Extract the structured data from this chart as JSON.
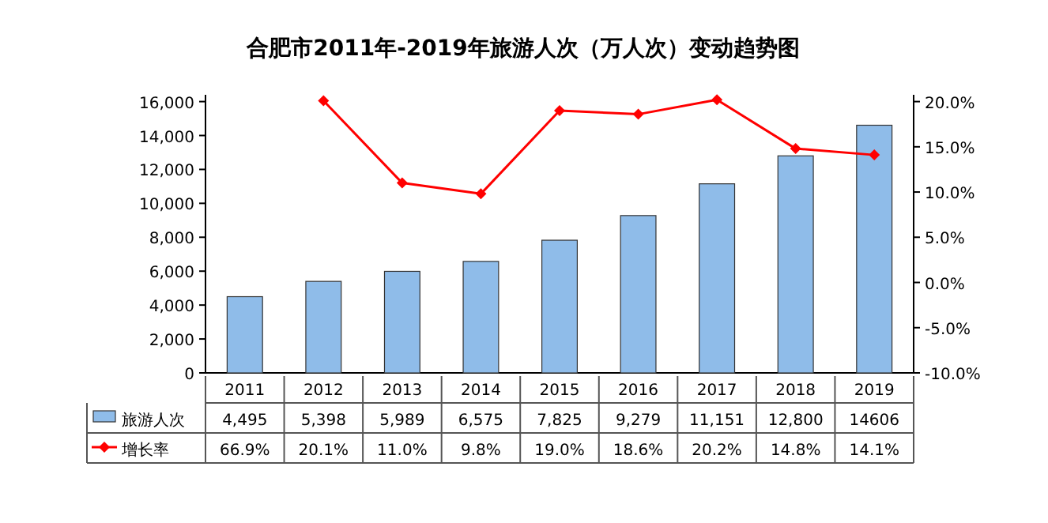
{
  "chart_data": {
    "type": "bar",
    "title": "合肥市2011年-2019年旅游人次（万人次）变动趋势图",
    "categories": [
      "2011",
      "2012",
      "2013",
      "2014",
      "2015",
      "2016",
      "2017",
      "2018",
      "2019"
    ],
    "series": [
      {
        "name": "旅游人次",
        "color": "#8fbce9",
        "values": [
          4495,
          5398,
          5989,
          6575,
          7825,
          9279,
          11151,
          12800,
          14606
        ],
        "value_labels": [
          "4,495",
          "5,398",
          "5,989",
          "6,575",
          "7,825",
          "9,279",
          "11,151",
          "12,800",
          "14606"
        ]
      },
      {
        "name": "增长率",
        "type": "line",
        "axis": "y2",
        "color": "#ff0000",
        "marker": "diamond",
        "values": [
          null,
          20.1,
          11.0,
          9.8,
          19.0,
          18.6,
          20.2,
          14.8,
          14.1
        ],
        "value_labels": [
          "66.9%",
          "20.1%",
          "11.0%",
          "9.8%",
          "19.0%",
          "18.6%",
          "20.2%",
          "14.8%",
          "14.1%"
        ]
      }
    ],
    "ylim": [
      0,
      16400
    ],
    "yticks": [
      0,
      {
        "value": 2000,
        "label": "2,000"
      },
      {
        "value": 4000,
        "label": "4,000"
      },
      {
        "value": 6000,
        "label": "6,000"
      },
      {
        "value": 8000,
        "label": "8,000"
      },
      {
        "value": 10000,
        "label": "10,000"
      },
      {
        "value": 12000,
        "label": "12,000"
      },
      {
        "value": 14000,
        "label": "14,000"
      },
      {
        "value": 16000,
        "label": "16,000"
      }
    ],
    "y2lim": [
      -10,
      20.75
    ],
    "y2ticks": [
      {
        "value": -10,
        "label": "-10.0%"
      },
      {
        "value": -5,
        "label": "-5.0%"
      },
      {
        "value": 0,
        "label": "0.0%"
      },
      {
        "value": 5,
        "label": "5.0%"
      },
      {
        "value": 10,
        "label": "10.0%"
      },
      {
        "value": 15,
        "label": "15.0%"
      },
      {
        "value": 20,
        "label": "20.0%"
      }
    ],
    "legend": "bottom",
    "grid": false
  }
}
